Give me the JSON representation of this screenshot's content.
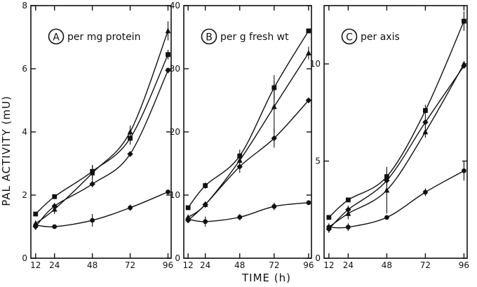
{
  "chart_data": {
    "type": "line",
    "ylabel": "PAL ACTIVITY (mU)",
    "xlabel": "TIME (h)",
    "x_ticks": [
      12,
      24,
      48,
      72,
      96
    ],
    "panels": [
      {
        "letter": "A",
        "title": "per mg protein",
        "ylim": [
          0,
          8
        ],
        "y_ticks": [
          0,
          2,
          4,
          6,
          8
        ],
        "series": [
          {
            "marker": "square",
            "x": [
              12,
              24,
              48,
              72,
              96
            ],
            "y": [
              1.4,
              1.95,
              2.75,
              3.8,
              6.45
            ],
            "err": [
              0,
              0,
              0.2,
              0.2,
              0.15
            ]
          },
          {
            "marker": "triangle",
            "x": [
              12,
              24,
              48,
              72,
              96
            ],
            "y": [
              1.1,
              1.55,
              2.7,
              4.0,
              7.2
            ],
            "err": [
              0,
              0.15,
              0.25,
              0.2,
              0.3
            ]
          },
          {
            "marker": "diamond",
            "x": [
              12,
              24,
              48,
              72,
              96
            ],
            "y": [
              1.0,
              1.65,
              2.35,
              3.3,
              5.95
            ],
            "err": [
              0.1,
              0.1,
              0.1,
              0,
              0
            ]
          },
          {
            "marker": "circle",
            "x": [
              12,
              24,
              48,
              72,
              96
            ],
            "y": [
              1.05,
              1.0,
              1.2,
              1.6,
              2.1
            ],
            "err": [
              0.15,
              0,
              0.2,
              0.1,
              0
            ]
          }
        ]
      },
      {
        "letter": "B",
        "title": "per g fresh wt",
        "ylim": [
          0,
          40
        ],
        "y_ticks": [
          0,
          10,
          20,
          30,
          40
        ],
        "series": [
          {
            "marker": "square",
            "x": [
              12,
              24,
              48,
              72,
              96
            ],
            "y": [
              8.0,
              11.5,
              16.2,
              27.0,
              36.0
            ],
            "err": [
              0,
              0.5,
              1.0,
              2.0,
              0
            ]
          },
          {
            "marker": "triangle",
            "x": [
              12,
              24,
              48,
              72,
              96
            ],
            "y": [
              6.5,
              8.5,
              15.5,
              24.0,
              32.5
            ],
            "err": [
              0,
              0.5,
              1.0,
              4.0,
              1.0
            ]
          },
          {
            "marker": "diamond",
            "x": [
              12,
              24,
              48,
              72,
              96
            ],
            "y": [
              6.0,
              8.5,
              14.5,
              19.0,
              25.0
            ],
            "err": [
              0,
              0.5,
              1.0,
              1.5,
              0
            ]
          },
          {
            "marker": "circle",
            "x": [
              12,
              24,
              48,
              72,
              96
            ],
            "y": [
              6.2,
              5.8,
              6.5,
              8.2,
              8.8
            ],
            "err": [
              0.5,
              0.8,
              0.5,
              0.6,
              0
            ]
          }
        ]
      },
      {
        "letter": "C",
        "title": "per axis",
        "ylim": [
          0,
          13
        ],
        "y_ticks": [
          0,
          5,
          10
        ],
        "series": [
          {
            "marker": "square",
            "x": [
              12,
              24,
              48,
              72,
              96
            ],
            "y": [
              2.1,
              3.0,
              4.2,
              7.6,
              12.2
            ],
            "err": [
              0,
              0,
              0.2,
              0.3,
              0.5
            ]
          },
          {
            "marker": "triangle",
            "x": [
              12,
              24,
              48,
              72,
              96
            ],
            "y": [
              1.6,
              2.3,
              3.5,
              6.5,
              10.0
            ],
            "err": [
              0,
              0.3,
              1.2,
              0.3,
              0
            ]
          },
          {
            "marker": "diamond",
            "x": [
              12,
              24,
              48,
              72,
              96
            ],
            "y": [
              1.5,
              2.5,
              4.0,
              7.0,
              9.9
            ],
            "err": [
              0.2,
              0.2,
              0.3,
              0.3,
              0
            ]
          },
          {
            "marker": "circle",
            "x": [
              12,
              24,
              48,
              72,
              96
            ],
            "y": [
              1.6,
              1.6,
              2.1,
              3.4,
              4.5
            ],
            "err": [
              0.2,
              0.2,
              0,
              0.2,
              0.5
            ]
          }
        ]
      }
    ]
  }
}
